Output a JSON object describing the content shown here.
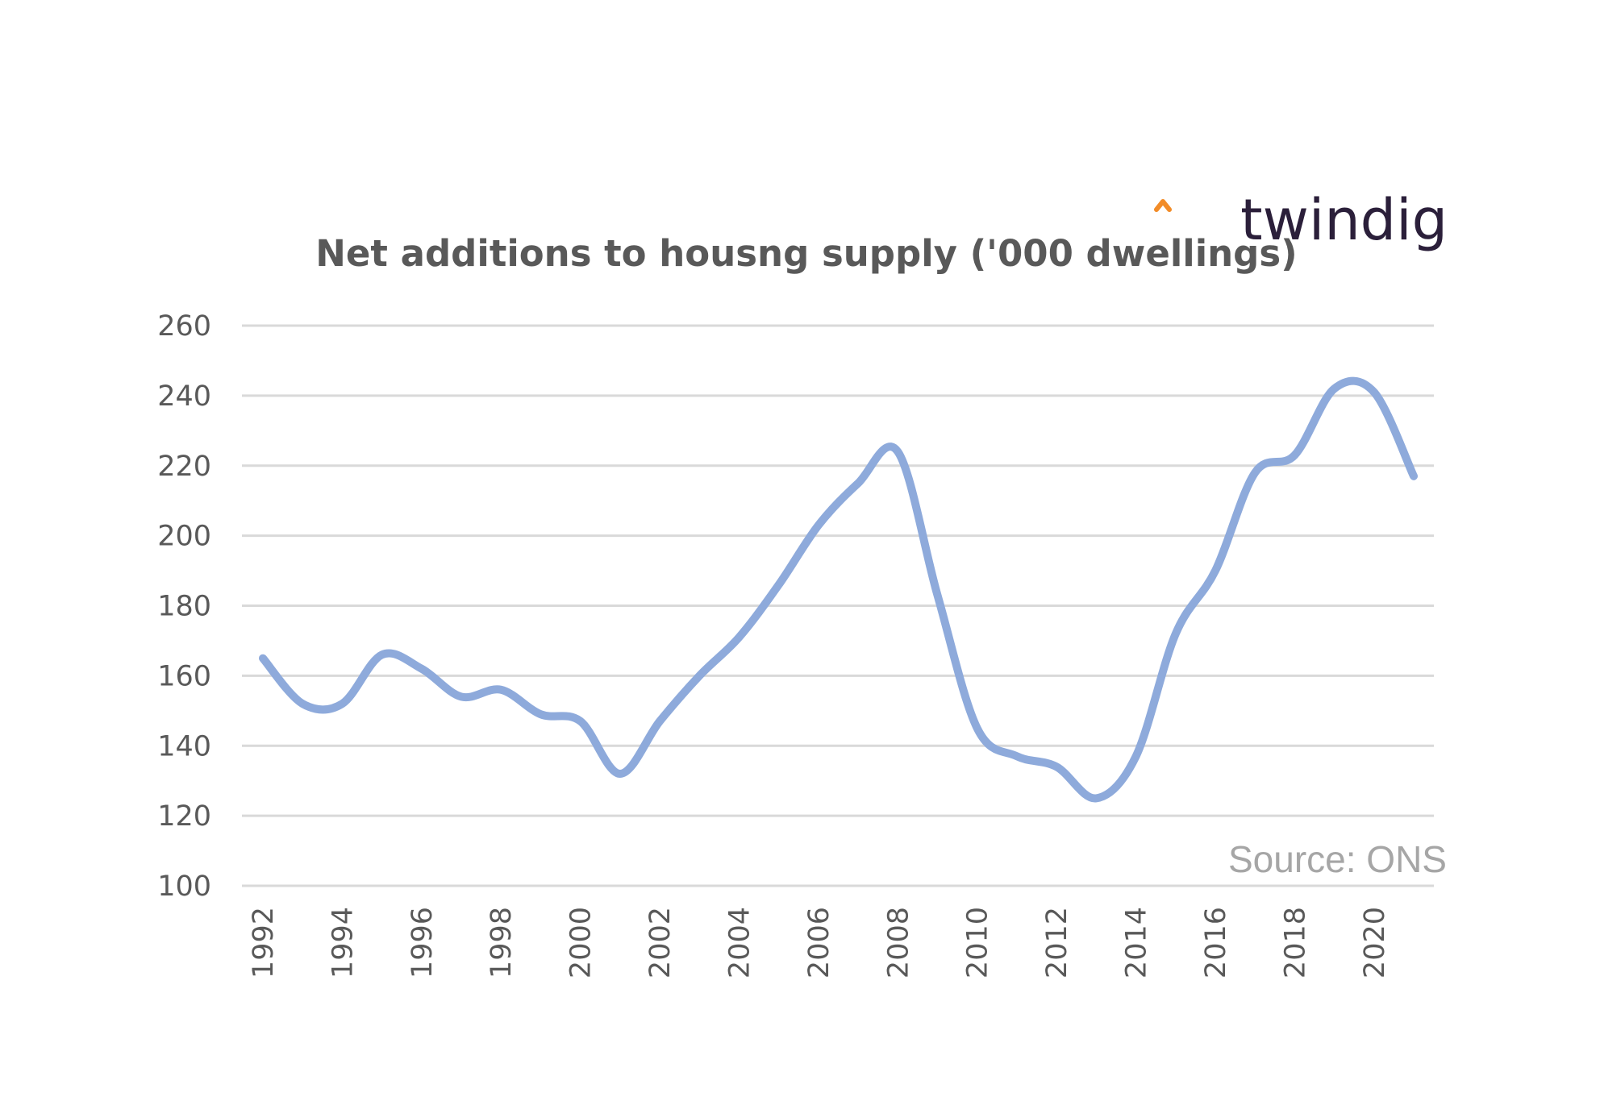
{
  "logo": {
    "text": "twindig",
    "accent_color": "#f28c28"
  },
  "source": "Source: ONS",
  "chart_data": {
    "type": "line",
    "title": "Net additions to housng supply ('000 dwellings)",
    "xlabel": "",
    "ylabel": "",
    "x": [
      1992,
      1993,
      1994,
      1995,
      1996,
      1997,
      1998,
      1999,
      2000,
      2001,
      2002,
      2003,
      2004,
      2005,
      2006,
      2007,
      2008,
      2009,
      2010,
      2011,
      2012,
      2013,
      2014,
      2015,
      2016,
      2017,
      2018,
      2019,
      2020,
      2021
    ],
    "x_tick_labels": [
      "1992",
      "1994",
      "1996",
      "1998",
      "2000",
      "2002",
      "2004",
      "2006",
      "2008",
      "2010",
      "2012",
      "2014",
      "2016",
      "2018",
      "2020"
    ],
    "y_ticks": [
      100,
      120,
      140,
      160,
      180,
      200,
      220,
      240,
      260
    ],
    "ylim": [
      100,
      260
    ],
    "grid": true,
    "legend": "none",
    "series": [
      {
        "color": "#8eaadb",
        "values": [
          165,
          152,
          152,
          166,
          162,
          154,
          156,
          149,
          147,
          132,
          147,
          160,
          171,
          186,
          203,
          215,
          224,
          183,
          145,
          137,
          134,
          125,
          137,
          172,
          190,
          218,
          223,
          242,
          241,
          217
        ]
      }
    ]
  }
}
